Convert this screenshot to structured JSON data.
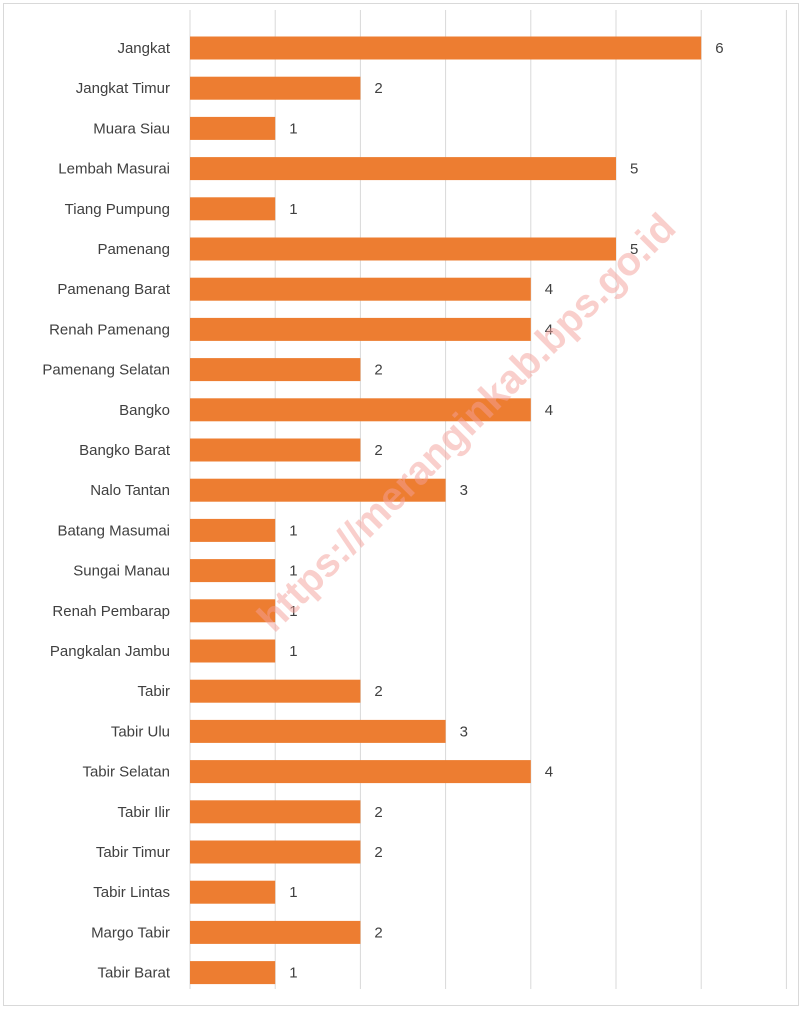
{
  "chart_data": {
    "type": "bar",
    "orientation": "horizontal",
    "categories": [
      "Jangkat",
      "Jangkat Timur",
      "Muara Siau",
      "Lembah Masurai",
      "Tiang Pumpung",
      "Pamenang",
      "Pamenang Barat",
      "Renah Pamenang",
      "Pamenang Selatan",
      "Bangko",
      "Bangko Barat",
      "Nalo Tantan",
      "Batang Masumai",
      "Sungai Manau",
      "Renah Pembarap",
      "Pangkalan Jambu",
      "Tabir",
      "Tabir Ulu",
      "Tabir Selatan",
      "Tabir Ilir",
      "Tabir Timur",
      "Tabir Lintas",
      "Margo Tabir",
      "Tabir Barat"
    ],
    "values": [
      6,
      2,
      1,
      5,
      1,
      5,
      4,
      4,
      2,
      4,
      2,
      3,
      1,
      1,
      1,
      1,
      2,
      3,
      4,
      2,
      2,
      1,
      2,
      1
    ],
    "xlim": [
      0,
      7
    ],
    "grid": true,
    "data_labels": true,
    "bar_color": "#ed7d31",
    "grid_color": "#d9d9d9",
    "watermark": "https://meranginkab.bps.go.id"
  }
}
